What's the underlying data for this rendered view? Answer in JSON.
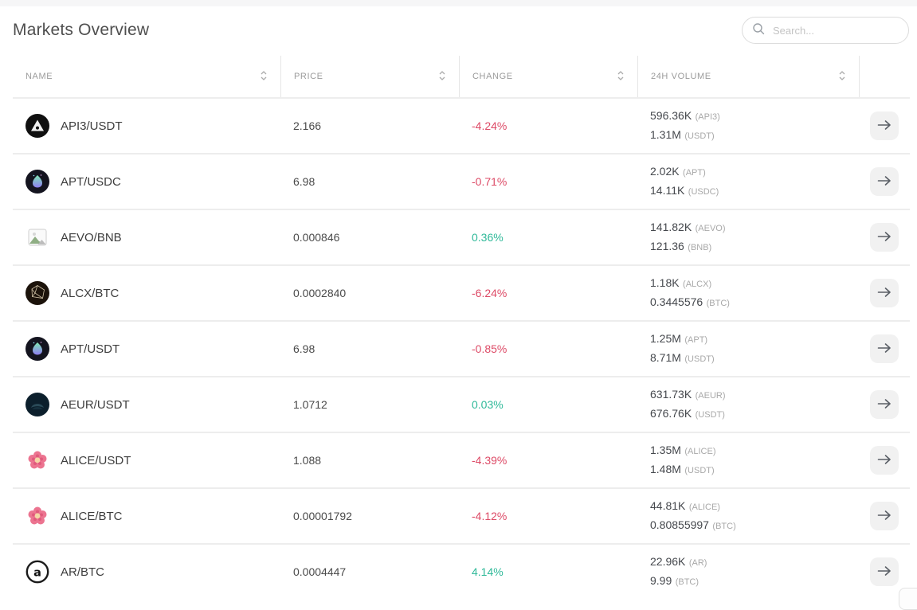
{
  "page": {
    "title": "Markets Overview",
    "search_placeholder": "Search..."
  },
  "colors": {
    "positive": "#2fb999",
    "negative": "#dd4a66"
  },
  "table": {
    "columns": [
      "Name",
      "Price",
      "Change",
      "24h Volume"
    ],
    "rows": [
      {
        "name": "API3/USDT",
        "icon": "api3-coin-icon",
        "price": "2.166",
        "change": "-4.24%",
        "direction": "down",
        "volume_base": "596.36K",
        "volume_base_unit": "(API3)",
        "volume_quote": "1.31M",
        "volume_quote_unit": "(USDT)"
      },
      {
        "name": "APT/USDC",
        "icon": "apt-coin-icon",
        "price": "6.98",
        "change": "-0.71%",
        "direction": "down",
        "volume_base": "2.02K",
        "volume_base_unit": "(APT)",
        "volume_quote": "14.11K",
        "volume_quote_unit": "(USDC)"
      },
      {
        "name": "AEVO/BNB",
        "icon": "broken-image-icon",
        "price": "0.000846",
        "change": "0.36%",
        "direction": "up",
        "volume_base": "141.82K",
        "volume_base_unit": "(AEVO)",
        "volume_quote": "121.36",
        "volume_quote_unit": "(BNB)"
      },
      {
        "name": "ALCX/BTC",
        "icon": "alcx-coin-icon",
        "price": "0.0002840",
        "change": "-6.24%",
        "direction": "down",
        "volume_base": "1.18K",
        "volume_base_unit": "(ALCX)",
        "volume_quote": "0.3445576",
        "volume_quote_unit": "(BTC)"
      },
      {
        "name": "APT/USDT",
        "icon": "apt-coin-icon",
        "price": "6.98",
        "change": "-0.85%",
        "direction": "down",
        "volume_base": "1.25M",
        "volume_base_unit": "(APT)",
        "volume_quote": "8.71M",
        "volume_quote_unit": "(USDT)"
      },
      {
        "name": "AEUR/USDT",
        "icon": "aeur-coin-icon",
        "price": "1.0712",
        "change": "0.03%",
        "direction": "up",
        "volume_base": "631.73K",
        "volume_base_unit": "(AEUR)",
        "volume_quote": "676.76K",
        "volume_quote_unit": "(USDT)"
      },
      {
        "name": "ALICE/USDT",
        "icon": "alice-coin-icon",
        "price": "1.088",
        "change": "-4.39%",
        "direction": "down",
        "volume_base": "1.35M",
        "volume_base_unit": "(ALICE)",
        "volume_quote": "1.48M",
        "volume_quote_unit": "(USDT)"
      },
      {
        "name": "ALICE/BTC",
        "icon": "alice-coin-icon",
        "price": "0.00001792",
        "change": "-4.12%",
        "direction": "down",
        "volume_base": "44.81K",
        "volume_base_unit": "(ALICE)",
        "volume_quote": "0.80855997",
        "volume_quote_unit": "(BTC)"
      },
      {
        "name": "AR/BTC",
        "icon": "ar-coin-icon",
        "price": "0.0004447",
        "change": "4.14%",
        "direction": "up",
        "volume_base": "22.96K",
        "volume_base_unit": "(AR)",
        "volume_quote": "9.99",
        "volume_quote_unit": "(BTC)"
      }
    ]
  }
}
